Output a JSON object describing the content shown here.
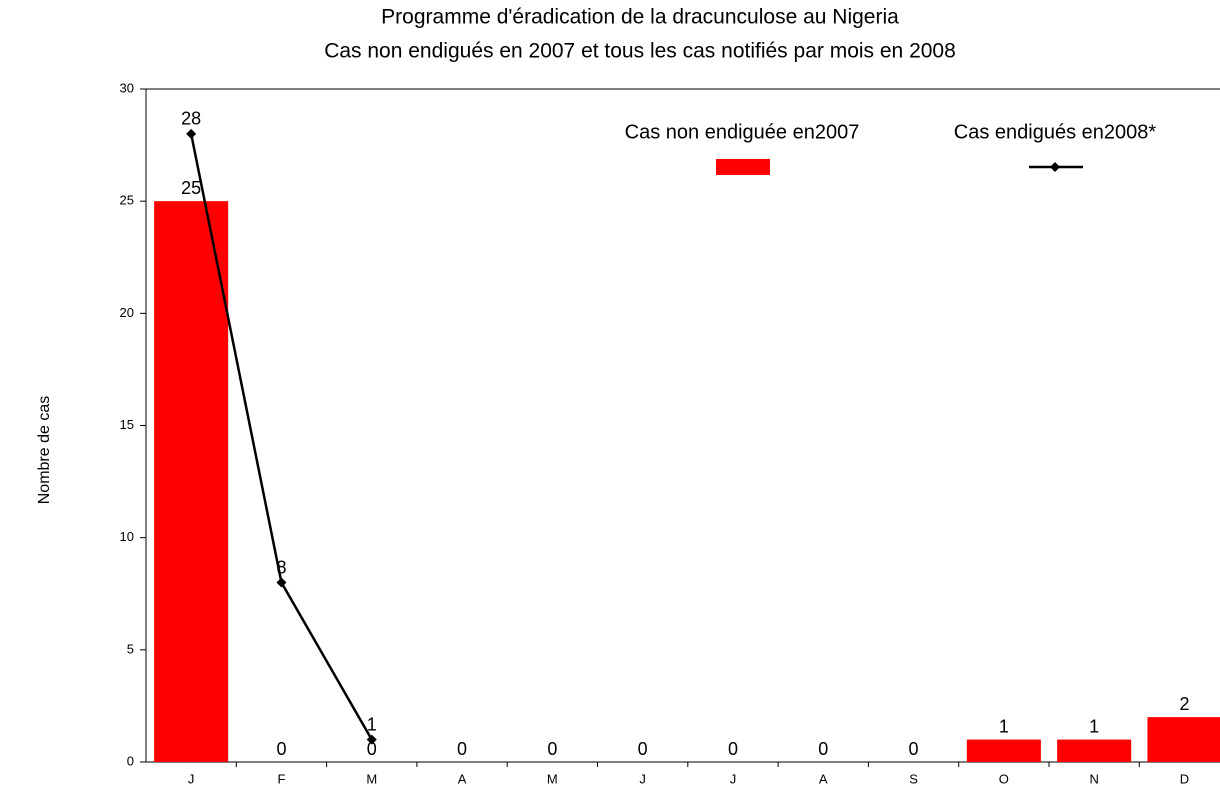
{
  "chart_data": {
    "type": "bar",
    "title": [
      "Programme d'éradication de la dracunculose au Nigeria",
      "Cas non endigués en 2007 et tous les cas notifiés par mois en 2008"
    ],
    "y_label": "Nombre de cas",
    "categories": [
      "J",
      "F",
      "M",
      "A",
      "M",
      "J",
      "J",
      "A",
      "S",
      "O",
      "N",
      "D"
    ],
    "series": [
      {
        "name": "Cas non endiguée en2007",
        "type": "bar",
        "color": "#ff0000",
        "values": [
          25,
          0,
          0,
          0,
          0,
          0,
          0,
          0,
          0,
          1,
          1,
          2
        ]
      },
      {
        "name": "Cas endigués en2008*",
        "type": "line",
        "color": "#000000",
        "values": [
          28,
          8,
          1,
          null,
          null,
          null,
          null,
          null,
          null,
          null,
          null,
          null
        ]
      }
    ],
    "ylim": [
      0,
      30
    ],
    "yticks": [
      0,
      5,
      10,
      15,
      20,
      25,
      30
    ],
    "grid": false,
    "legend": "upper right"
  }
}
